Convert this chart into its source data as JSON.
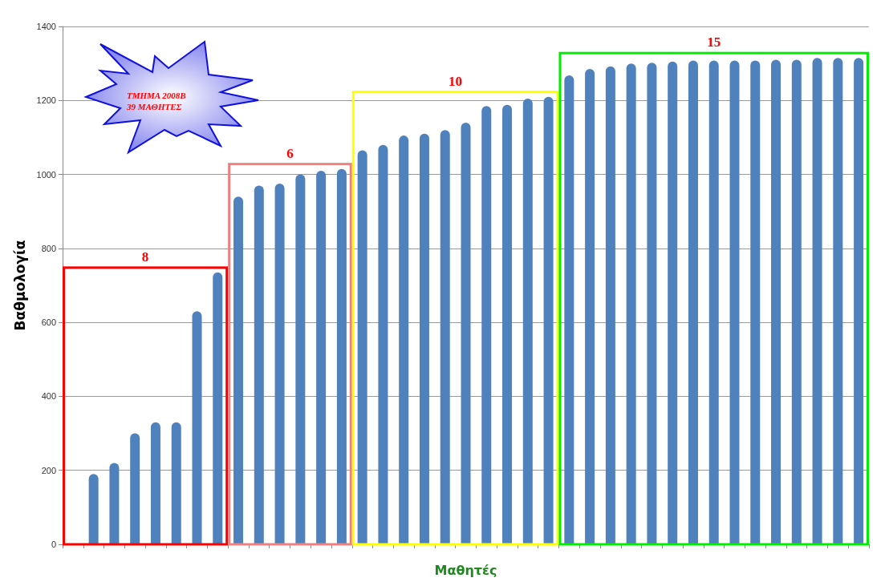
{
  "chart_data": {
    "type": "bar",
    "xlabel": "Μαθητές",
    "ylabel": "Βαθμολογία",
    "categories": [
      null,
      null,
      null,
      null,
      null,
      null,
      null,
      null,
      null,
      null,
      null,
      null,
      null,
      null,
      null,
      null,
      null,
      null,
      null,
      null,
      null,
      null,
      null,
      null,
      null,
      null,
      null,
      null,
      null,
      null,
      null,
      null,
      null,
      null,
      null,
      null,
      null,
      null,
      null
    ],
    "values": [
      null,
      190,
      220,
      300,
      330,
      330,
      630,
      735,
      940,
      970,
      975,
      1000,
      1010,
      1015,
      1065,
      1080,
      1105,
      1110,
      1120,
      1140,
      1185,
      1188,
      1205,
      1210,
      1268,
      1285,
      1292,
      1300,
      1302,
      1305,
      1308,
      1308,
      1308,
      1308,
      1310,
      1310,
      1315,
      1315,
      1315
    ],
    "color": "#4f81bd",
    "ylim": [
      0,
      1400
    ],
    "yticks": [
      0,
      200,
      400,
      600,
      800,
      1000,
      1200,
      1400
    ],
    "grid": "y",
    "annotations": [
      "8",
      "6",
      "10",
      "15",
      "ΤΜΗΜΑ 2008Β",
      "39 ΜΑΘΗΤΕΣ"
    ]
  }
}
